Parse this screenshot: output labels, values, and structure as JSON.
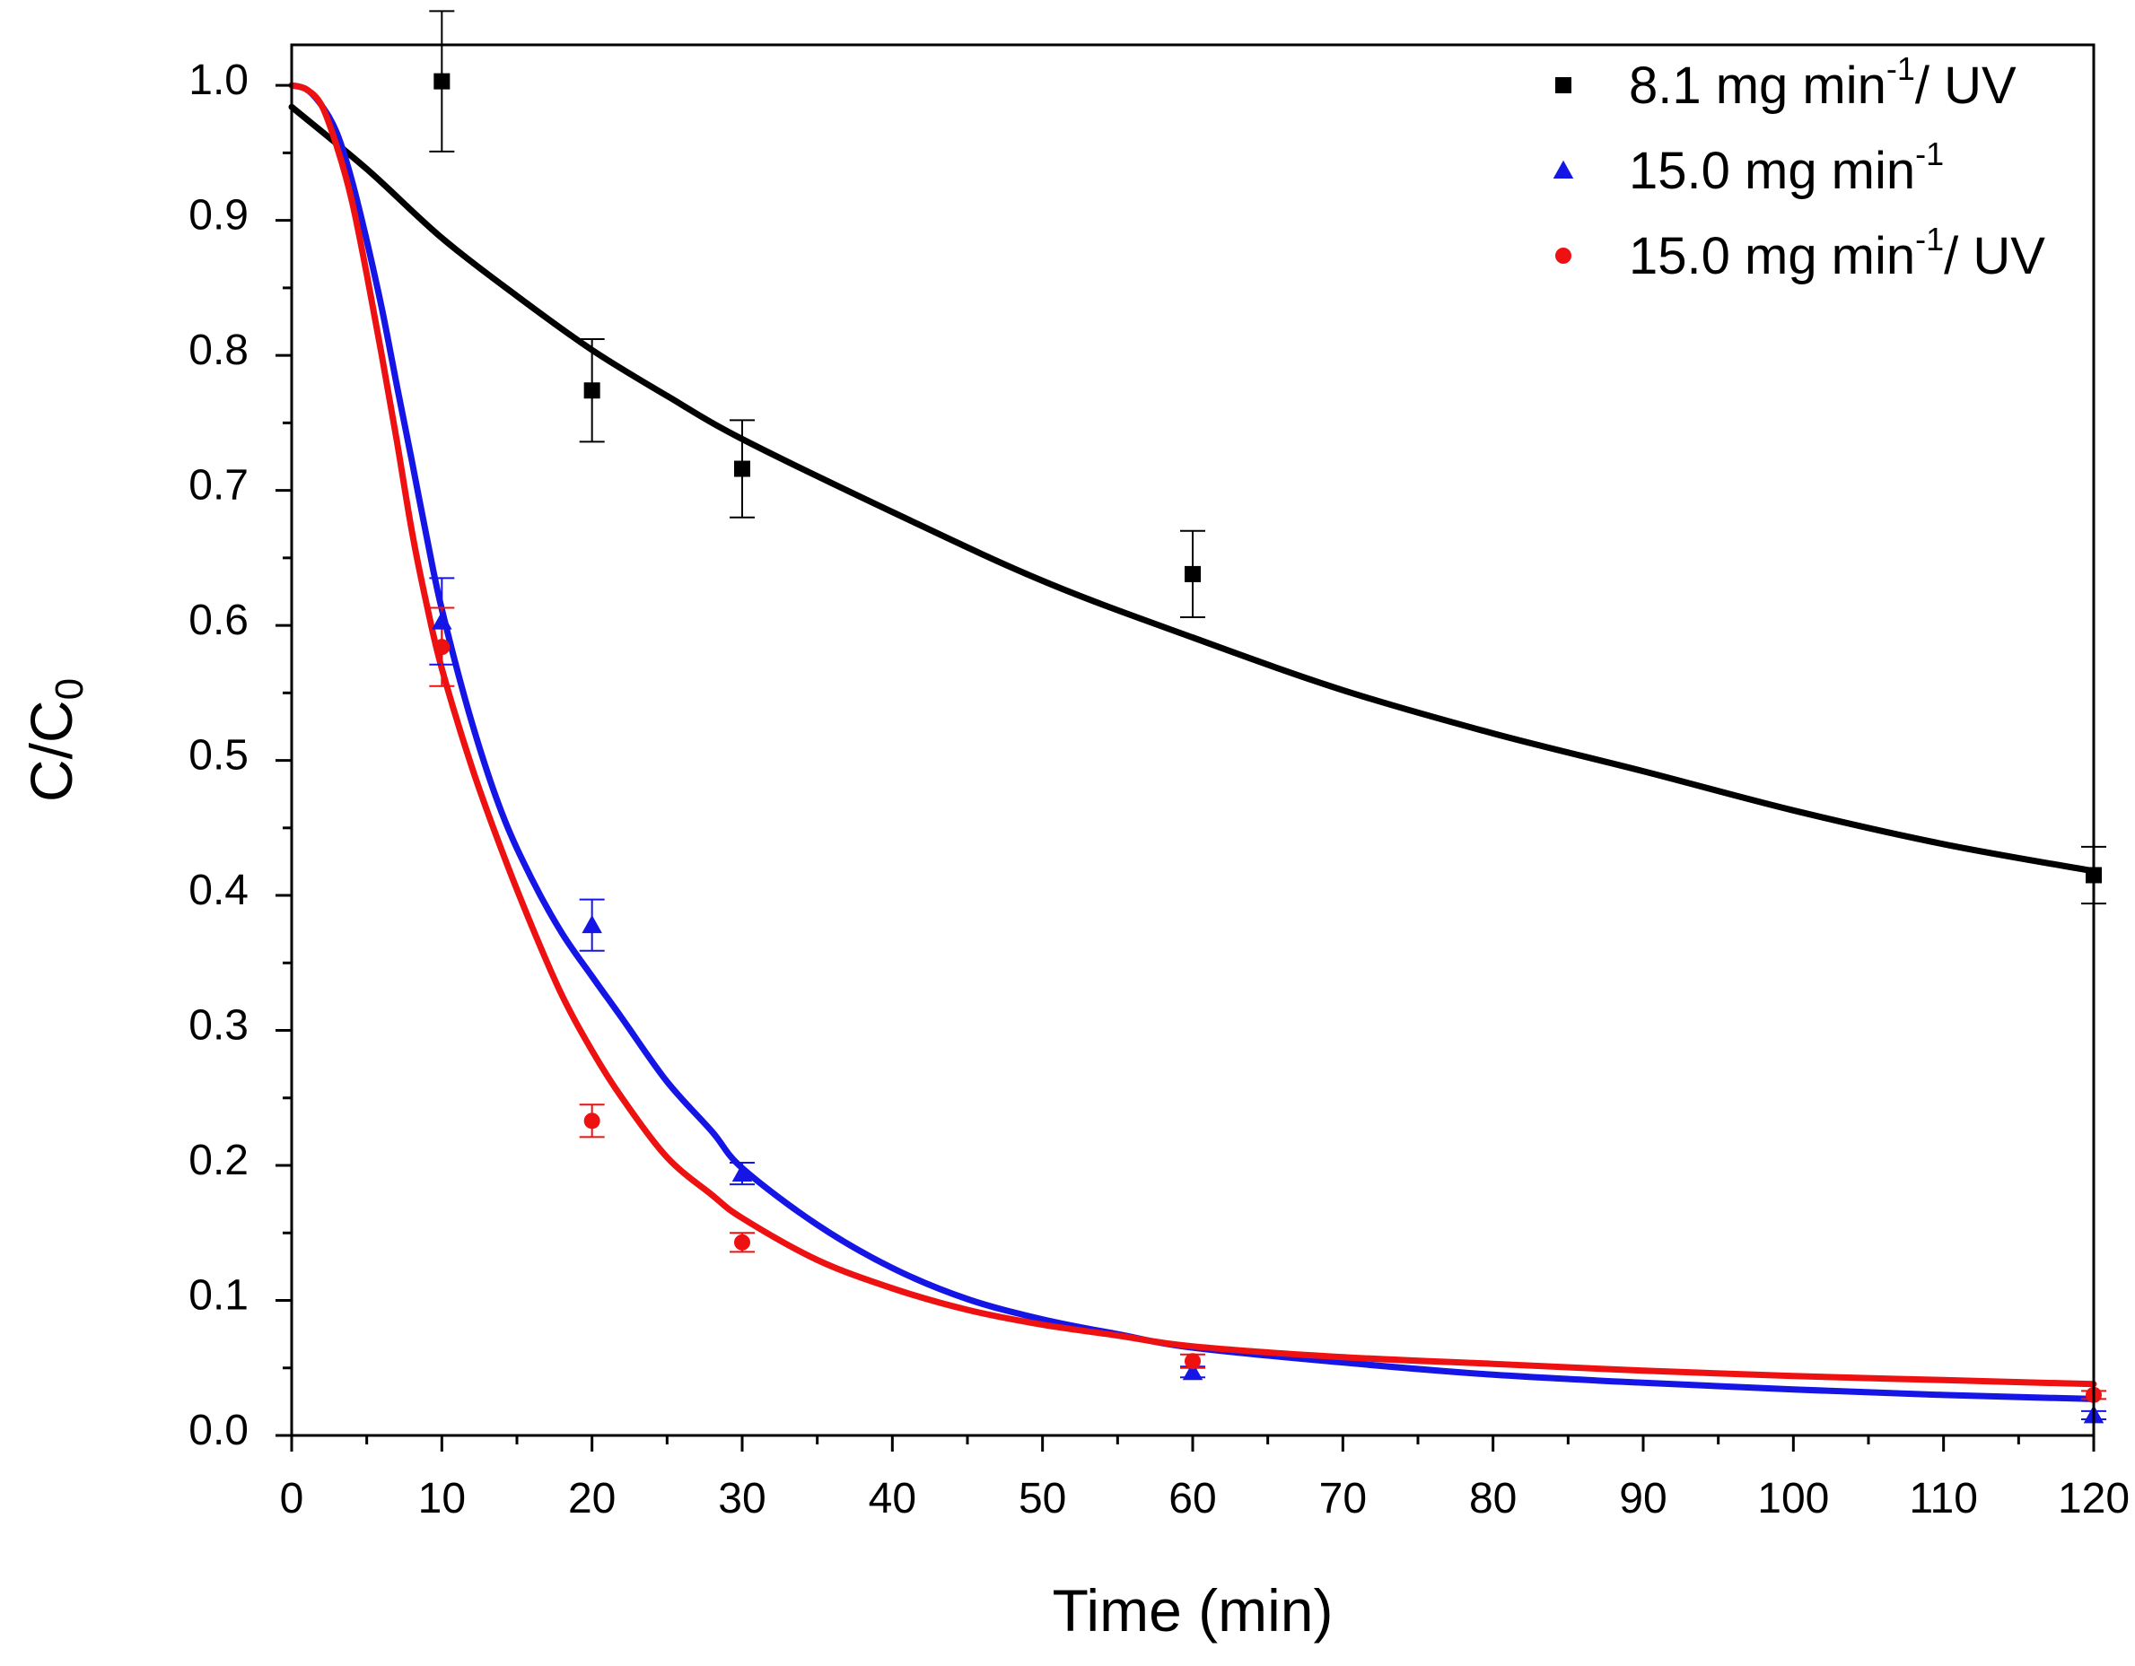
{
  "chart_data": {
    "type": "scatter",
    "title": "",
    "xlabel": "Time (min)",
    "ylabel": {
      "main": "C/C",
      "sub": "0"
    },
    "xlim": [
      0,
      120
    ],
    "ylim": [
      0,
      1.03
    ],
    "x_ticks": [
      0,
      10,
      20,
      30,
      40,
      50,
      60,
      70,
      80,
      90,
      100,
      110,
      120
    ],
    "x_tick_labels": [
      "0",
      "10",
      "20",
      "30",
      "40",
      "50",
      "60",
      "70",
      "80",
      "90",
      "100",
      "110",
      "120"
    ],
    "y_ticks": [
      0,
      0.1,
      0.2,
      0.3,
      0.4,
      0.5,
      0.6,
      0.7,
      0.8,
      0.9,
      1.0
    ],
    "y_tick_labels": [
      "0.0",
      "0.1",
      "0.2",
      "0.3",
      "0.4",
      "0.5",
      "0.6",
      "0.7",
      "0.8",
      "0.9",
      "1.0"
    ],
    "grid": false,
    "legend_position": "top-right",
    "series": [
      {
        "name": "8.1 mg min-1 / UV",
        "legend": {
          "pre": "8.1 mg min",
          "sup": "-1",
          "post": "/ UV"
        },
        "color": "#000000",
        "marker": "square",
        "points": [
          {
            "x": 10,
            "y": 1.003,
            "err": 0.052
          },
          {
            "x": 20,
            "y": 0.774,
            "err": 0.038
          },
          {
            "x": 30,
            "y": 0.716,
            "err": 0.036
          },
          {
            "x": 60,
            "y": 0.638,
            "err": 0.032
          },
          {
            "x": 120,
            "y": 0.415,
            "err": 0.021
          }
        ],
        "fit": [
          [
            0,
            0.984
          ],
          [
            5,
            0.938
          ],
          [
            10,
            0.887
          ],
          [
            15,
            0.844
          ],
          [
            20,
            0.804
          ],
          [
            25,
            0.77
          ],
          [
            30,
            0.738
          ],
          [
            40,
            0.684
          ],
          [
            50,
            0.633
          ],
          [
            60,
            0.591
          ],
          [
            70,
            0.552
          ],
          [
            80,
            0.52
          ],
          [
            90,
            0.492
          ],
          [
            100,
            0.463
          ],
          [
            110,
            0.438
          ],
          [
            120,
            0.418
          ]
        ]
      },
      {
        "name": "15.0 mg min-1",
        "legend": {
          "pre": "15.0 mg min",
          "sup": "-1",
          "post": ""
        },
        "color": "#1515e6",
        "marker": "triangle",
        "points": [
          {
            "x": 10,
            "y": 0.603,
            "err": 0.032
          },
          {
            "x": 20,
            "y": 0.378,
            "err": 0.019
          },
          {
            "x": 30,
            "y": 0.194,
            "err": 0.008
          },
          {
            "x": 60,
            "y": 0.047,
            "err": 0.004
          },
          {
            "x": 120,
            "y": 0.015,
            "err": 0.003
          }
        ],
        "fit": [
          [
            0,
            1.0
          ],
          [
            1,
            0.997
          ],
          [
            2,
            0.985
          ],
          [
            3,
            0.965
          ],
          [
            4,
            0.93
          ],
          [
            5,
            0.885
          ],
          [
            6,
            0.835
          ],
          [
            7,
            0.778
          ],
          [
            8,
            0.722
          ],
          [
            9,
            0.665
          ],
          [
            10,
            0.612
          ],
          [
            12,
            0.528
          ],
          [
            14,
            0.461
          ],
          [
            16,
            0.412
          ],
          [
            18,
            0.372
          ],
          [
            20,
            0.34
          ],
          [
            22,
            0.309
          ],
          [
            25,
            0.262
          ],
          [
            28,
            0.225
          ],
          [
            30,
            0.198
          ],
          [
            35,
            0.156
          ],
          [
            40,
            0.124
          ],
          [
            45,
            0.101
          ],
          [
            50,
            0.086
          ],
          [
            55,
            0.075
          ],
          [
            60,
            0.065
          ],
          [
            70,
            0.054
          ],
          [
            80,
            0.045
          ],
          [
            90,
            0.039
          ],
          [
            100,
            0.034
          ],
          [
            110,
            0.03
          ],
          [
            120,
            0.027
          ]
        ]
      },
      {
        "name": "15.0 mg min-1 / UV",
        "legend": {
          "pre": "15.0 mg min",
          "sup": "-1",
          "post": "/ UV"
        },
        "color": "#ee1111",
        "marker": "circle",
        "points": [
          {
            "x": 10,
            "y": 0.584,
            "err": 0.029
          },
          {
            "x": 20,
            "y": 0.233,
            "err": 0.012
          },
          {
            "x": 30,
            "y": 0.143,
            "err": 0.007
          },
          {
            "x": 60,
            "y": 0.055,
            "err": 0.005
          },
          {
            "x": 120,
            "y": 0.03,
            "err": 0.003
          }
        ],
        "fit": [
          [
            0,
            1.0
          ],
          [
            1,
            0.997
          ],
          [
            2,
            0.985
          ],
          [
            3,
            0.955
          ],
          [
            4,
            0.915
          ],
          [
            5,
            0.86
          ],
          [
            6,
            0.8
          ],
          [
            7,
            0.737
          ],
          [
            8,
            0.67
          ],
          [
            9,
            0.615
          ],
          [
            10,
            0.568
          ],
          [
            12,
            0.495
          ],
          [
            14,
            0.433
          ],
          [
            16,
            0.377
          ],
          [
            18,
            0.326
          ],
          [
            20,
            0.285
          ],
          [
            22,
            0.25
          ],
          [
            25,
            0.206
          ],
          [
            28,
            0.178
          ],
          [
            30,
            0.161
          ],
          [
            35,
            0.13
          ],
          [
            40,
            0.109
          ],
          [
            45,
            0.093
          ],
          [
            50,
            0.082
          ],
          [
            55,
            0.074
          ],
          [
            60,
            0.066
          ],
          [
            70,
            0.058
          ],
          [
            80,
            0.053
          ],
          [
            90,
            0.048
          ],
          [
            100,
            0.044
          ],
          [
            110,
            0.041
          ],
          [
            120,
            0.038
          ]
        ]
      }
    ]
  }
}
